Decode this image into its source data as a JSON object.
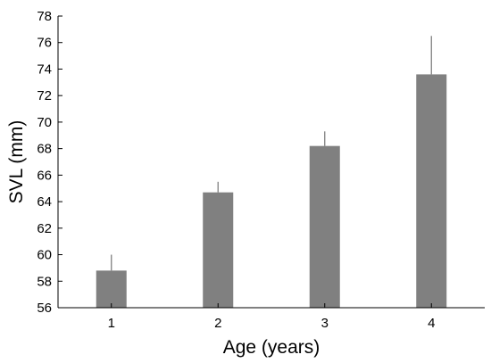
{
  "chart_data": {
    "type": "bar",
    "title": "",
    "xlabel": "Age (years)",
    "ylabel": "SVL (mm)",
    "categories": [
      "1",
      "2",
      "3",
      "4"
    ],
    "values": [
      58.8,
      64.7,
      68.2,
      73.6
    ],
    "error_upper": [
      1.2,
      0.8,
      1.1,
      2.9
    ],
    "ylim": [
      56,
      78
    ],
    "yticks": [
      "56",
      "58",
      "60",
      "62",
      "64",
      "66",
      "68",
      "70",
      "72",
      "74",
      "76",
      "78"
    ],
    "grid": false,
    "legend": "none",
    "bar_color": "#808080",
    "error_bar_color": "#808080"
  }
}
